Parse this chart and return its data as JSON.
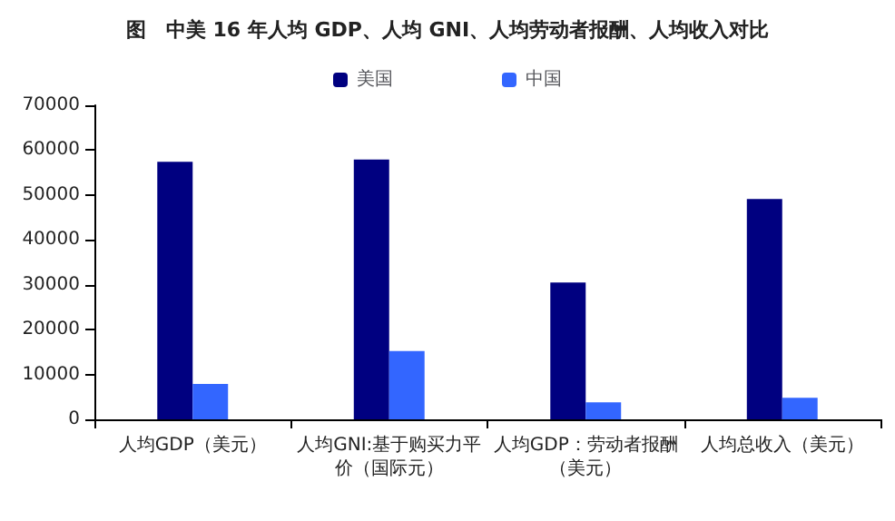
{
  "chart_data": {
    "type": "bar",
    "title": "图　中美 16 年人均 GDP、人均 GNI、人均劳动者报酬、人均收入对比",
    "categories": [
      "人均GDP（美元）",
      "人均GNI:基于购买力平价（国际元）",
      "人均GDP：劳动者报酬（美元）",
      "人均总收入（美元）"
    ],
    "series": [
      {
        "name": "美国",
        "color": "#000080",
        "values": [
          57400,
          57900,
          30500,
          49100
        ]
      },
      {
        "name": "中国",
        "color": "#3366ff",
        "values": [
          7900,
          15200,
          3800,
          4800
        ]
      }
    ],
    "ylim": [
      0,
      70000
    ],
    "yticks": [
      0,
      10000,
      20000,
      30000,
      40000,
      50000,
      60000,
      70000
    ],
    "grid": false,
    "legend": "top"
  }
}
